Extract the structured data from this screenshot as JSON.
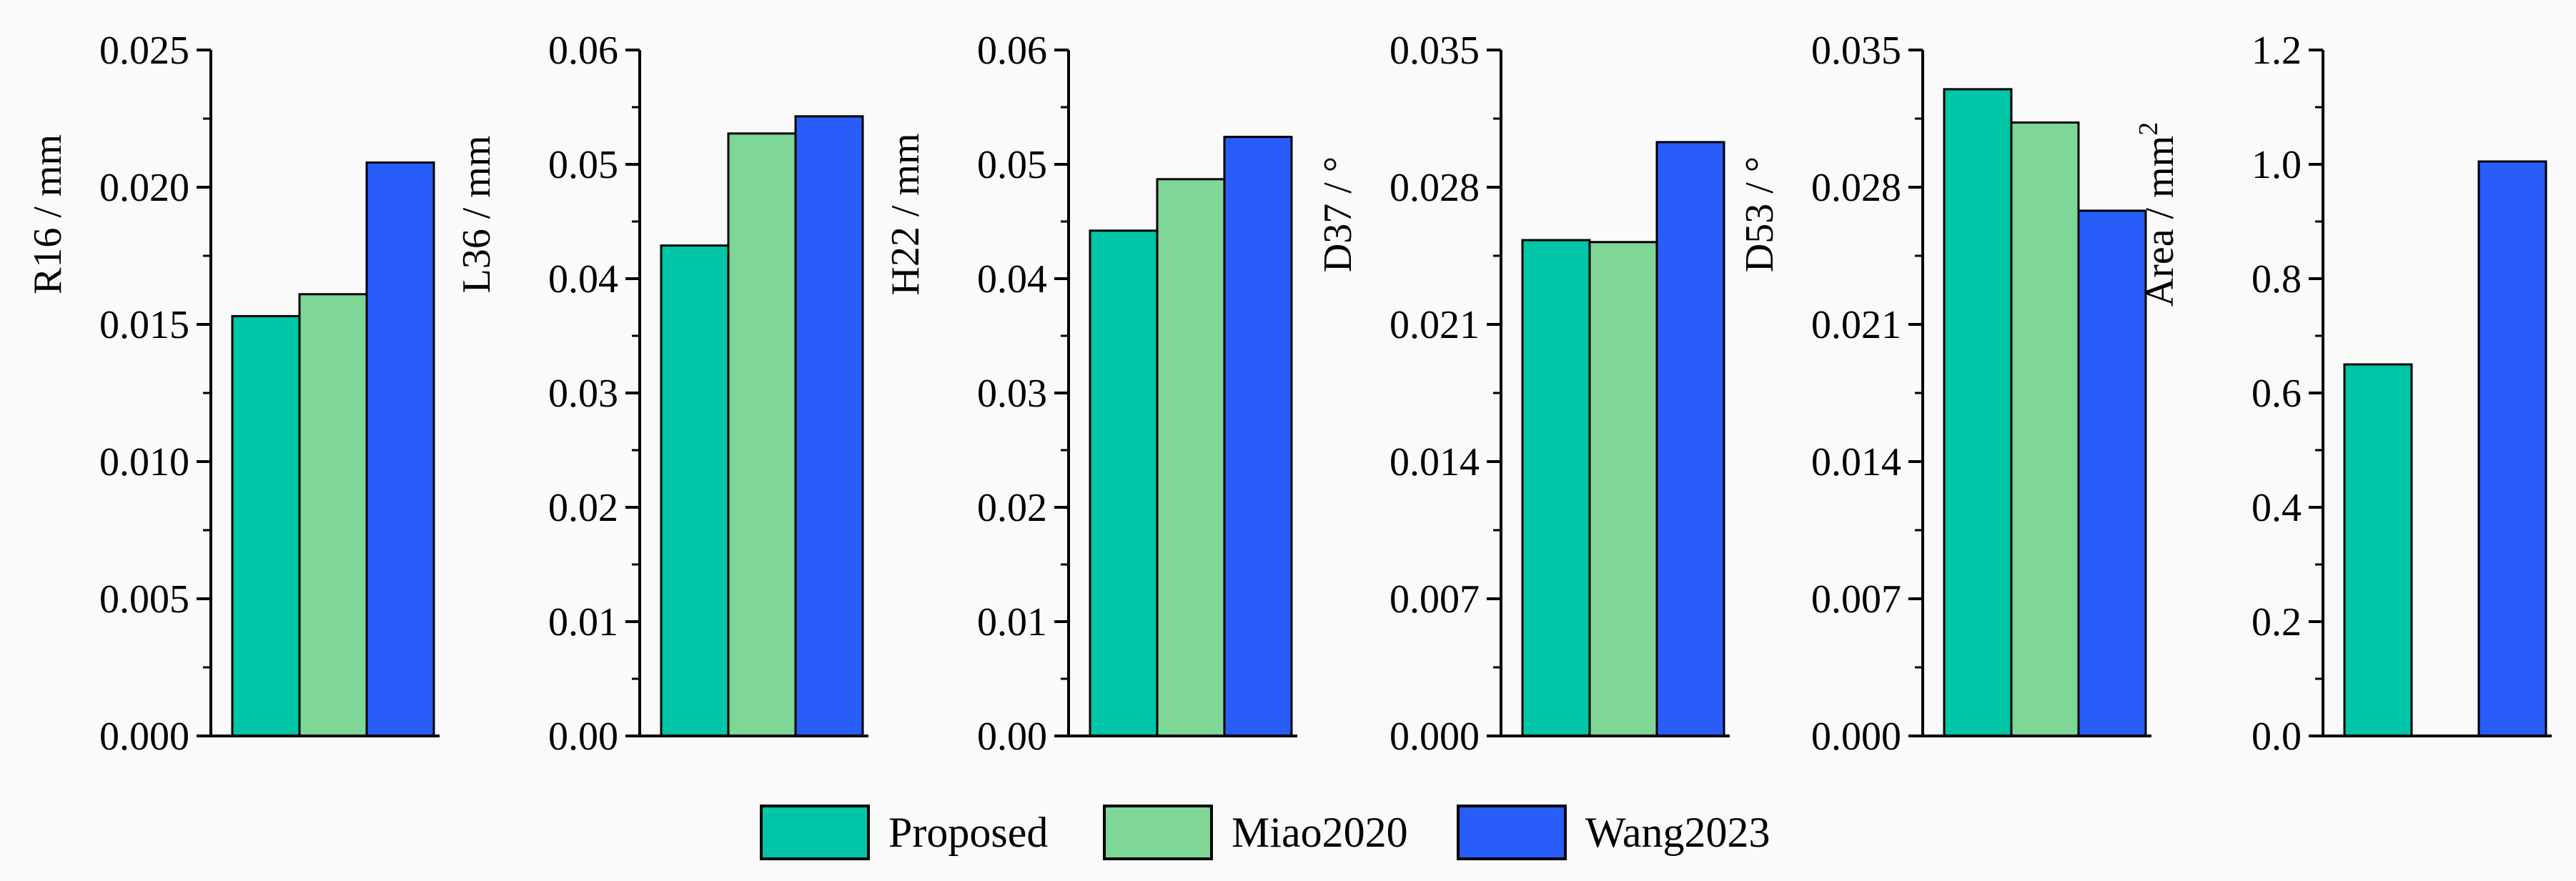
{
  "colors": {
    "Proposed": "#00c5a6",
    "Miao2020": "#7ed697",
    "Wang2023": "#285dfa",
    "axis": "#000000",
    "background": "#fafafa"
  },
  "legend": {
    "items": [
      {
        "name": "Proposed",
        "color": "#00c5a6"
      },
      {
        "name": "Miao2020",
        "color": "#7ed697"
      },
      {
        "name": "Wang2023",
        "color": "#285dfa"
      }
    ]
  },
  "chart_data": [
    {
      "type": "bar",
      "ylabel": "R16 / mm",
      "ylim": [
        0,
        0.025
      ],
      "yticks": [
        "0.000",
        "0.005",
        "0.010",
        "0.015",
        "0.020",
        "0.025"
      ],
      "categories": [
        "Proposed",
        "Miao2020",
        "Wang2023"
      ],
      "values": [
        0.0153,
        0.0161,
        0.0209
      ]
    },
    {
      "type": "bar",
      "ylabel": "L36 / mm",
      "ylim": [
        0,
        0.06
      ],
      "yticks": [
        "0.00",
        "0.01",
        "0.02",
        "0.03",
        "0.04",
        "0.05",
        "0.06"
      ],
      "categories": [
        "Proposed",
        "Miao2020",
        "Wang2023"
      ],
      "values": [
        0.0429,
        0.0527,
        0.0542
      ]
    },
    {
      "type": "bar",
      "ylabel": "H22 / mm",
      "ylim": [
        0,
        0.06
      ],
      "yticks": [
        "0.00",
        "0.01",
        "0.02",
        "0.03",
        "0.04",
        "0.05",
        "0.06"
      ],
      "categories": [
        "Proposed",
        "Miao2020",
        "Wang2023"
      ],
      "values": [
        0.0442,
        0.0487,
        0.0524
      ]
    },
    {
      "type": "bar",
      "ylabel": "D37 / °",
      "ylim": [
        0,
        0.035
      ],
      "yticks": [
        "0.000",
        "0.007",
        "0.014",
        "0.021",
        "0.028",
        "0.035"
      ],
      "categories": [
        "Proposed",
        "Miao2020",
        "Wang2023"
      ],
      "values": [
        0.0253,
        0.0252,
        0.0303
      ]
    },
    {
      "type": "bar",
      "ylabel": "D53 / °",
      "ylim": [
        0,
        0.035
      ],
      "yticks": [
        "0.000",
        "0.007",
        "0.014",
        "0.021",
        "0.028",
        "0.035"
      ],
      "categories": [
        "Proposed",
        "Miao2020",
        "Wang2023"
      ],
      "values": [
        0.033,
        0.0313,
        0.0268
      ]
    },
    {
      "type": "bar",
      "ylabel": "Area / mm",
      "ylabel_sup": "2",
      "ylim": [
        0,
        1.2
      ],
      "yticks": [
        "0.0",
        "0.2",
        "0.4",
        "0.6",
        "0.8",
        "1.0",
        "1.2"
      ],
      "categories": [
        "Proposed",
        "Miao2020",
        "Wang2023"
      ],
      "values": [
        0.65,
        null,
        1.005
      ]
    }
  ]
}
